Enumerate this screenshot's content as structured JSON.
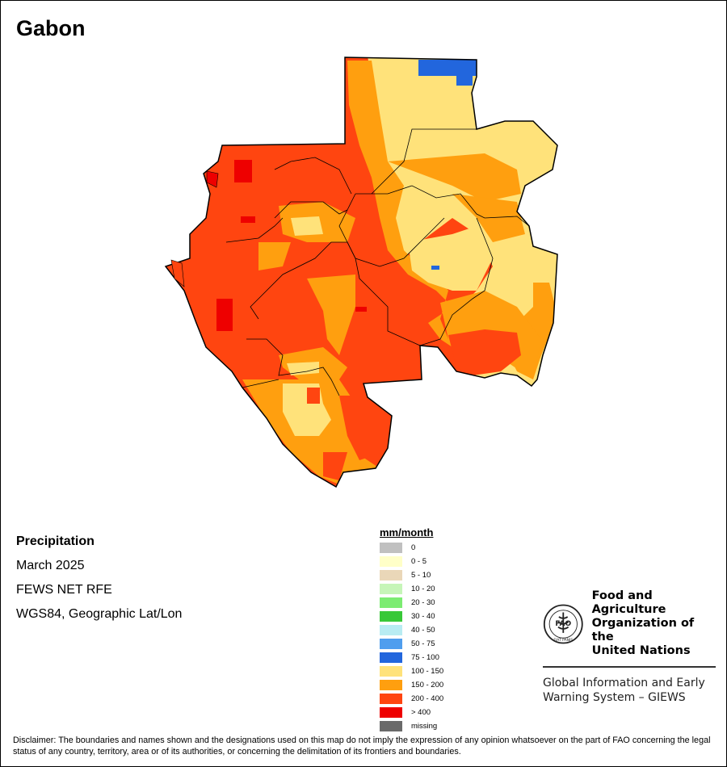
{
  "map": {
    "title": "Gabon"
  },
  "info": {
    "variable": "Precipitation",
    "period": "March 2025",
    "source": "FEWS NET RFE",
    "projection": "WGS84, Geographic Lat/Lon"
  },
  "legend": {
    "title": "mm/month",
    "items": [
      {
        "label": "0",
        "color": "#c0c0c0"
      },
      {
        "label": "0 - 5",
        "color": "#ffffc8"
      },
      {
        "label": "5 - 10",
        "color": "#ead7b8"
      },
      {
        "label": "10 - 20",
        "color": "#c6f5b8"
      },
      {
        "label": "20 - 30",
        "color": "#7cec72"
      },
      {
        "label": "30 - 40",
        "color": "#38c838"
      },
      {
        "label": "40 - 50",
        "color": "#b8ecf2"
      },
      {
        "label": "50 - 75",
        "color": "#4f9eee"
      },
      {
        "label": "75 - 100",
        "color": "#2266dd"
      },
      {
        "label": "100 - 150",
        "color": "#ffe27a"
      },
      {
        "label": "150 - 200",
        "color": "#ff9f0f"
      },
      {
        "label": "200 - 400",
        "color": "#ff4510"
      },
      {
        "label": "> 400",
        "color": "#ee0000"
      },
      {
        "label": "missing",
        "color": "#6a6a6a"
      }
    ]
  },
  "organization": {
    "logo_text": "FAO",
    "logo_motto": "FIAT PANIS",
    "name_line1": "Food and Agriculture",
    "name_line2": "Organization of the",
    "name_line3": "United Nations",
    "system_line1": "Global Information and Early",
    "system_line2": "Warning System – GIEWS"
  },
  "disclaimer": "Disclaimer: The boundaries and names shown and the designations used on this map do not imply the expression of any opinion whatsoever on the part of FAO concerning the legal status of any country, territory, area or of its authorities, or concerning the delimitation of its frontiers and boundaries."
}
